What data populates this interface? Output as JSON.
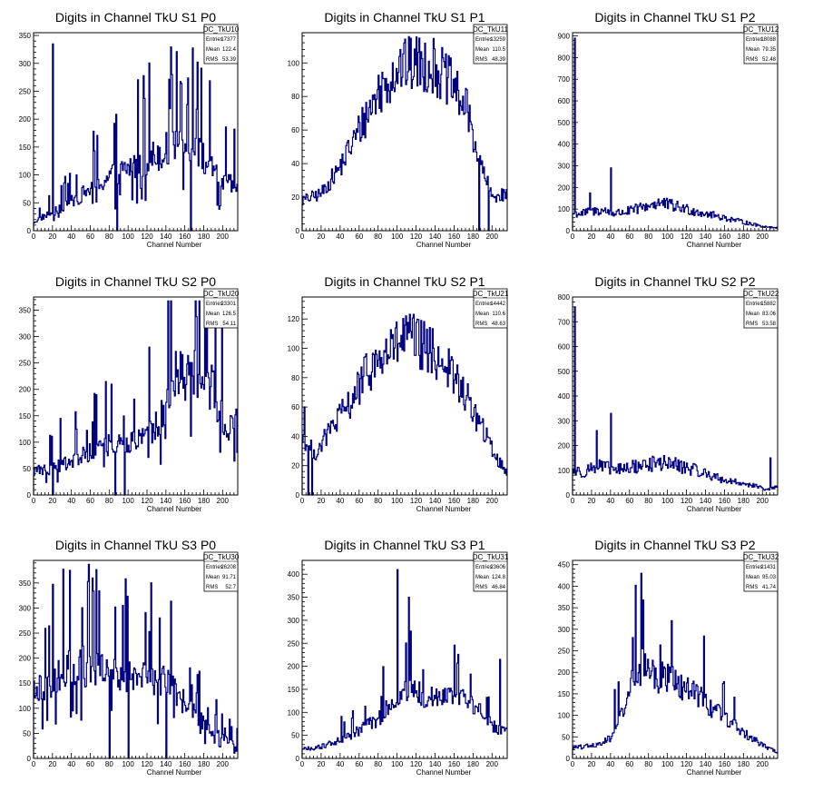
{
  "chart_data": [
    {
      "type": "bar",
      "title": "Digits in Channel TkU S1 P0",
      "xlabel": "Channel Number",
      "xlim": [
        0,
        216
      ],
      "ylim": [
        0,
        355
      ],
      "xticks": [
        0,
        20,
        40,
        60,
        80,
        100,
        120,
        140,
        160,
        180,
        200
      ],
      "yticks": [
        50,
        100,
        150,
        200,
        250,
        300,
        350
      ],
      "stats": {
        "name": "DC_TkU10",
        "entries": "17377",
        "mean": "122.4",
        "rms": "53.39"
      },
      "style": "wild",
      "peaks": [
        [
          20,
          335
        ],
        [
          116,
          278
        ]
      ],
      "zeros": [
        88,
        166
      ],
      "profile": [
        [
          0,
          15
        ],
        [
          10,
          25
        ],
        [
          30,
          40
        ],
        [
          60,
          75
        ],
        [
          90,
          105
        ],
        [
          110,
          120
        ],
        [
          140,
          145
        ],
        [
          170,
          150
        ],
        [
          200,
          85
        ],
        [
          216,
          80
        ]
      ]
    },
    {
      "type": "bar",
      "title": "Digits in Channel TkU S1 P1",
      "xlabel": "Channel Number",
      "xlim": [
        0,
        216
      ],
      "ylim": [
        0,
        118
      ],
      "xticks": [
        0,
        20,
        40,
        60,
        80,
        100,
        120,
        140,
        160,
        180,
        200
      ],
      "yticks": [
        20,
        40,
        60,
        80,
        100
      ],
      "stats": {
        "name": "DC_TkU11",
        "entries": "13259",
        "mean": "110.5",
        "rms": "48.39"
      },
      "style": "smooth",
      "peaks": [],
      "zeros": [
        186,
        196
      ],
      "profile": [
        [
          0,
          18
        ],
        [
          20,
          22
        ],
        [
          40,
          38
        ],
        [
          60,
          60
        ],
        [
          80,
          82
        ],
        [
          100,
          97
        ],
        [
          120,
          100
        ],
        [
          140,
          98
        ],
        [
          160,
          85
        ],
        [
          175,
          70
        ],
        [
          185,
          45
        ],
        [
          200,
          20
        ],
        [
          216,
          22
        ]
      ]
    },
    {
      "type": "bar",
      "title": "Digits in Channel TkU S1 P2",
      "xlabel": "Channel Number",
      "xlim": [
        0,
        216
      ],
      "ylim": [
        0,
        915
      ],
      "xticks": [
        0,
        20,
        40,
        60,
        80,
        100,
        120,
        140,
        160,
        180,
        200
      ],
      "yticks": [
        100,
        200,
        300,
        400,
        500,
        600,
        700,
        800,
        900
      ],
      "stats": {
        "name": "DC_TkU12",
        "entries": "18088",
        "mean": "79.35",
        "rms": "52.48"
      },
      "style": "low",
      "peaks": [
        [
          2,
          890
        ],
        [
          40,
          290
        ],
        [
          18,
          175
        ]
      ],
      "zeros": [],
      "profile": [
        [
          0,
          80
        ],
        [
          10,
          80
        ],
        [
          30,
          95
        ],
        [
          45,
          80
        ],
        [
          60,
          90
        ],
        [
          90,
          130
        ],
        [
          120,
          100
        ],
        [
          160,
          60
        ],
        [
          200,
          20
        ],
        [
          212,
          15
        ]
      ]
    },
    {
      "type": "bar",
      "title": "Digits in Channel TkU S2 P0",
      "xlabel": "Channel Number",
      "xlim": [
        0,
        216
      ],
      "ylim": [
        0,
        375
      ],
      "xticks": [
        0,
        20,
        40,
        60,
        80,
        100,
        120,
        140,
        160,
        180,
        200
      ],
      "yticks": [
        50,
        100,
        150,
        200,
        250,
        300,
        350
      ],
      "stats": {
        "name": "DC_TkU20",
        "entries": "23301",
        "mean": "126.5",
        "rms": "54.11"
      },
      "style": "wild",
      "peaks": [
        [
          28,
          145
        ],
        [
          192,
          330
        ]
      ],
      "zeros": [
        20,
        86,
        96
      ],
      "profile": [
        [
          0,
          45
        ],
        [
          20,
          50
        ],
        [
          40,
          65
        ],
        [
          60,
          80
        ],
        [
          80,
          95
        ],
        [
          100,
          100
        ],
        [
          120,
          110
        ],
        [
          135,
          150
        ],
        [
          150,
          230
        ],
        [
          170,
          225
        ],
        [
          190,
          200
        ],
        [
          205,
          120
        ],
        [
          216,
          140
        ]
      ]
    },
    {
      "type": "bar",
      "title": "Digits in Channel TkU S2 P1",
      "xlabel": "Channel Number",
      "xlim": [
        0,
        216
      ],
      "ylim": [
        0,
        135
      ],
      "xticks": [
        0,
        20,
        40,
        60,
        80,
        100,
        120,
        140,
        160,
        180,
        200
      ],
      "yticks": [
        20,
        40,
        60,
        80,
        100,
        120
      ],
      "stats": {
        "name": "DC_TkU21",
        "entries": "14442",
        "mean": "110.6",
        "rms": "48.63"
      },
      "style": "smooth",
      "peaks": [
        [
          2,
          60
        ]
      ],
      "zeros": [
        6,
        10
      ],
      "profile": [
        [
          0,
          40
        ],
        [
          14,
          28
        ],
        [
          30,
          45
        ],
        [
          50,
          62
        ],
        [
          70,
          85
        ],
        [
          90,
          97
        ],
        [
          110,
          108
        ],
        [
          130,
          100
        ],
        [
          150,
          90
        ],
        [
          170,
          70
        ],
        [
          190,
          45
        ],
        [
          205,
          25
        ],
        [
          216,
          15
        ]
      ]
    },
    {
      "type": "bar",
      "title": "Digits in Channel TkU S2 P2",
      "xlabel": "Channel Number",
      "xlim": [
        0,
        216
      ],
      "ylim": [
        0,
        800
      ],
      "xticks": [
        0,
        20,
        40,
        60,
        80,
        100,
        120,
        140,
        160,
        180,
        200
      ],
      "yticks": [
        100,
        200,
        300,
        400,
        500,
        600,
        700,
        800
      ],
      "stats": {
        "name": "DC_TkU22",
        "entries": "15882",
        "mean": "83.06",
        "rms": "53.58"
      },
      "style": "low",
      "peaks": [
        [
          2,
          760
        ],
        [
          40,
          330
        ],
        [
          25,
          260
        ],
        [
          208,
          150
        ]
      ],
      "zeros": [],
      "profile": [
        [
          0,
          100
        ],
        [
          10,
          90
        ],
        [
          25,
          120
        ],
        [
          45,
          100
        ],
        [
          60,
          110
        ],
        [
          80,
          125
        ],
        [
          100,
          130
        ],
        [
          130,
          100
        ],
        [
          160,
          60
        ],
        [
          190,
          40
        ],
        [
          205,
          20
        ],
        [
          212,
          30
        ]
      ]
    },
    {
      "type": "bar",
      "title": "Digits in Channel TkU S3 P0",
      "xlabel": "Channel Number",
      "xlim": [
        0,
        216
      ],
      "ylim": [
        0,
        395
      ],
      "xticks": [
        0,
        20,
        40,
        60,
        80,
        100,
        120,
        140,
        160,
        180,
        200
      ],
      "yticks": [
        50,
        100,
        150,
        200,
        250,
        300,
        350
      ],
      "stats": {
        "name": "DC_TkU30",
        "entries": "26208",
        "mean": "91.71",
        "rms": "52.7"
      },
      "style": "wild",
      "peaks": [
        [
          38,
          375
        ],
        [
          62,
          360
        ]
      ],
      "zeros": [
        80,
        100,
        140
      ],
      "profile": [
        [
          0,
          130
        ],
        [
          20,
          150
        ],
        [
          40,
          190
        ],
        [
          60,
          180
        ],
        [
          80,
          170
        ],
        [
          100,
          165
        ],
        [
          120,
          160
        ],
        [
          140,
          150
        ],
        [
          160,
          110
        ],
        [
          180,
          70
        ],
        [
          200,
          40
        ],
        [
          216,
          25
        ]
      ]
    },
    {
      "type": "bar",
      "title": "Digits in Channel TkU S3 P1",
      "xlabel": "Channel Number",
      "xlim": [
        0,
        216
      ],
      "ylim": [
        0,
        430
      ],
      "xticks": [
        0,
        20,
        40,
        60,
        80,
        100,
        120,
        140,
        160,
        180,
        200
      ],
      "yticks": [
        50,
        100,
        150,
        200,
        250,
        300,
        350,
        400
      ],
      "stats": {
        "name": "DC_TkU31",
        "entries": "23606",
        "mean": "124.8",
        "rms": "46.84"
      },
      "style": "bump",
      "peaks": [
        [
          100,
          410
        ],
        [
          112,
          350
        ],
        [
          208,
          215
        ]
      ],
      "zeros": [],
      "profile": [
        [
          0,
          20
        ],
        [
          20,
          25
        ],
        [
          40,
          40
        ],
        [
          60,
          60
        ],
        [
          80,
          85
        ],
        [
          95,
          120
        ],
        [
          110,
          155
        ],
        [
          130,
          135
        ],
        [
          150,
          135
        ],
        [
          170,
          130
        ],
        [
          190,
          100
        ],
        [
          200,
          70
        ],
        [
          216,
          55
        ]
      ]
    },
    {
      "type": "bar",
      "title": "Digits in Channel TkU S3 P2",
      "xlabel": "Channel Number",
      "xlim": [
        0,
        216
      ],
      "ylim": [
        0,
        460
      ],
      "xticks": [
        0,
        20,
        40,
        60,
        80,
        100,
        120,
        140,
        160,
        180,
        200
      ],
      "yticks": [
        50,
        100,
        150,
        200,
        250,
        300,
        350,
        400,
        450
      ],
      "stats": {
        "name": "DC_TkU32",
        "entries": "21431",
        "mean": "95.03",
        "rms": "41.74"
      },
      "style": "bump",
      "peaks": [
        [
          72,
          430
        ],
        [
          104,
          320
        ],
        [
          44,
          160
        ]
      ],
      "zeros": [],
      "profile": [
        [
          0,
          25
        ],
        [
          20,
          30
        ],
        [
          40,
          45
        ],
        [
          50,
          90
        ],
        [
          60,
          160
        ],
        [
          75,
          220
        ],
        [
          90,
          190
        ],
        [
          110,
          175
        ],
        [
          130,
          150
        ],
        [
          150,
          110
        ],
        [
          170,
          80
        ],
        [
          190,
          45
        ],
        [
          205,
          25
        ],
        [
          216,
          15
        ]
      ]
    }
  ]
}
